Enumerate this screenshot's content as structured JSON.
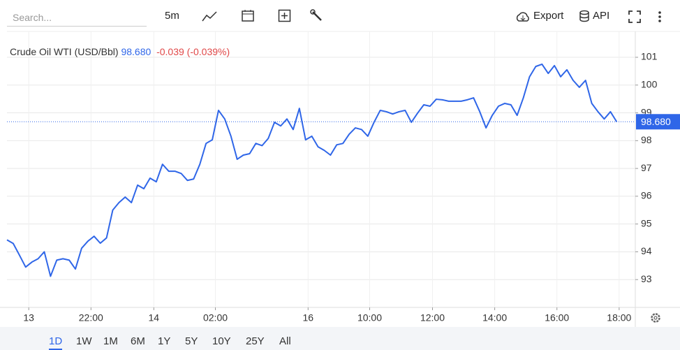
{
  "toolbar": {
    "search_placeholder": "Search...",
    "interval": "5m",
    "export": "Export",
    "api": "API"
  },
  "ranges": [
    "1D",
    "1W",
    "1M",
    "6M",
    "1Y",
    "5Y",
    "10Y",
    "25Y",
    "All"
  ],
  "active_range": 0,
  "chart_data": {
    "type": "line",
    "name": "Crude Oil WTI (USD/Bbl)",
    "last_value": 98.68,
    "last_value_label": "98.680",
    "change_label": "-0.039 (-0.039%)",
    "color": "#2f66e8",
    "grid": true,
    "xlim": [
      0,
      101
    ],
    "ylim": [
      92,
      101.93
    ],
    "xticks": [
      {
        "value": 3.5,
        "label": "13"
      },
      {
        "value": 13.5,
        "label": "22:00"
      },
      {
        "value": 23.6,
        "label": "14"
      },
      {
        "value": 33.5,
        "label": "02:00"
      },
      {
        "value": 48.4,
        "label": "16"
      },
      {
        "value": 58.3,
        "label": "10:00"
      },
      {
        "value": 68.4,
        "label": "12:00"
      },
      {
        "value": 78.4,
        "label": "14:00"
      },
      {
        "value": 88.4,
        "label": "16:00"
      },
      {
        "value": 98.4,
        "label": "18:00"
      }
    ],
    "yticks": [
      93,
      94,
      95,
      96,
      97,
      98,
      99,
      100,
      101
    ],
    "values": [
      94.43,
      94.3,
      93.88,
      93.45,
      93.63,
      93.75,
      94.0,
      93.12,
      93.7,
      93.75,
      93.7,
      93.38,
      94.13,
      94.38,
      94.56,
      94.31,
      94.5,
      95.5,
      95.77,
      95.97,
      95.77,
      96.4,
      96.27,
      96.65,
      96.52,
      97.15,
      96.9,
      96.9,
      96.82,
      96.57,
      96.62,
      97.15,
      97.9,
      98.03,
      99.09,
      98.78,
      98.16,
      97.33,
      97.48,
      97.53,
      97.9,
      97.82,
      98.08,
      98.66,
      98.53,
      98.78,
      98.4,
      99.16,
      98.03,
      98.16,
      97.78,
      97.65,
      97.48,
      97.85,
      97.9,
      98.23,
      98.46,
      98.4,
      98.16,
      98.66,
      99.09,
      99.04,
      98.96,
      99.04,
      99.09,
      98.66,
      98.99,
      99.29,
      99.24,
      99.49,
      99.47,
      99.42,
      99.42,
      99.42,
      99.47,
      99.54,
      99.04,
      98.46,
      98.91,
      99.24,
      99.34,
      99.29,
      98.91,
      99.54,
      100.3,
      100.67,
      100.75,
      100.42,
      100.7,
      100.3,
      100.55,
      100.17,
      99.92,
      100.17,
      99.34,
      99.04,
      98.78,
      99.04,
      98.68
    ]
  }
}
